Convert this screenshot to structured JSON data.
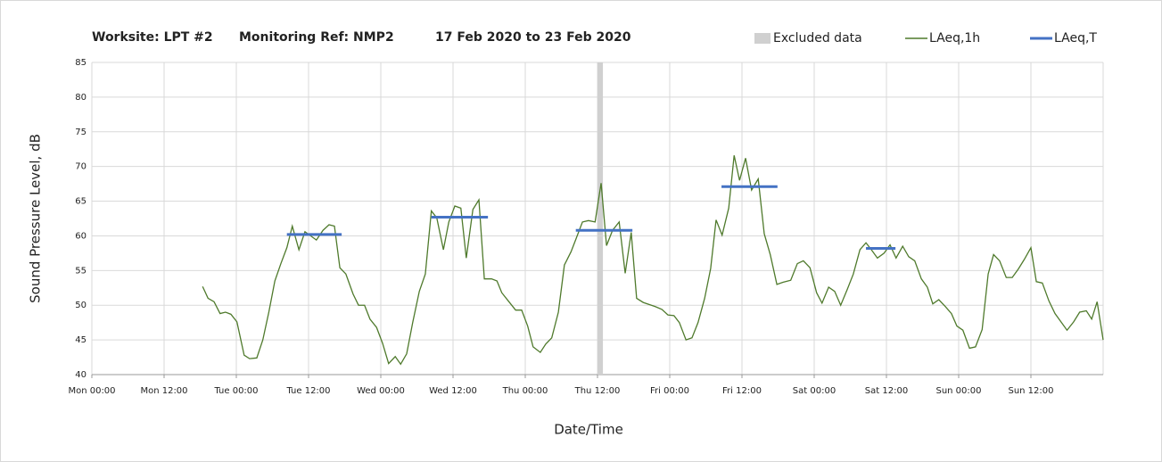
{
  "chart_data": {
    "type": "line",
    "title": [
      "Worksite: LPT #2",
      "Monitoring Ref: NMP2",
      "17 Feb 2020 to 23 Feb 2020"
    ],
    "xlabel": "Date/Time",
    "ylabel": "Sound Pressure Level, dB",
    "xlim": [
      0,
      168
    ],
    "xticks": [
      {
        "value": 0,
        "label": "Mon 00:00"
      },
      {
        "value": 12,
        "label": "Mon 12:00"
      },
      {
        "value": 24,
        "label": "Tue 00:00"
      },
      {
        "value": 36,
        "label": "Tue 12:00"
      },
      {
        "value": 48,
        "label": "Wed 00:00"
      },
      {
        "value": 60,
        "label": "Wed 12:00"
      },
      {
        "value": 72,
        "label": "Thu 00:00"
      },
      {
        "value": 84,
        "label": "Thu 12:00"
      },
      {
        "value": 96,
        "label": "Fri 00:00"
      },
      {
        "value": 108,
        "label": "Fri 12:00"
      },
      {
        "value": 120,
        "label": "Sat 00:00"
      },
      {
        "value": 132,
        "label": "Sat 12:00"
      },
      {
        "value": 144,
        "label": "Sun 00:00"
      },
      {
        "value": 156,
        "label": "Sun 12:00"
      }
    ],
    "ylim": [
      40,
      85
    ],
    "yticks": [
      40,
      45,
      50,
      55,
      60,
      65,
      70,
      75,
      80,
      85
    ],
    "grid": true,
    "excluded": {
      "name": "Excluded data",
      "color": "#d0d0d0",
      "x": [
        84,
        84.9
      ]
    },
    "series": [
      {
        "name": "LAeq,1h",
        "color": "#4f7a2c",
        "x": [
          18.4,
          19.3,
          20.3,
          21.3,
          22.2,
          23.1,
          24.1,
          25.3,
          26.2,
          27.4,
          28.4,
          29.4,
          30.4,
          31.4,
          32.4,
          33.3,
          34.4,
          35.4,
          37.3,
          38.4,
          39.4,
          40.3,
          41.2,
          42.2,
          43.4,
          44.3,
          45.3,
          46.2,
          47.3,
          48.3,
          49.3,
          50.4,
          51.3,
          52.3,
          53.3,
          54.4,
          55.4,
          56.4,
          57.3,
          58.4,
          59.3,
          60.3,
          61.3,
          62.2,
          63.3,
          64.3,
          65.2,
          66.4,
          67.3,
          68.1,
          69.2,
          70.4,
          71.4,
          72.4,
          73.3,
          74.5,
          75.4,
          76.4,
          77.5,
          78.5,
          79.6,
          80.4,
          81.5,
          82.5,
          83.6,
          84.6,
          85.5,
          86.5,
          87.6,
          88.6,
          89.6,
          90.5,
          91.6,
          93.6,
          94.7,
          95.7,
          96.7,
          97.6,
          98.7,
          99.7,
          100.7,
          101.8,
          102.8,
          103.7,
          104.7,
          105.8,
          106.7,
          107.6,
          108.6,
          109.6,
          110.7,
          111.7,
          112.7,
          113.8,
          114.8,
          116.1,
          117.2,
          118.2,
          119.3,
          120.4,
          121.3,
          122.4,
          123.4,
          124.4,
          125.5,
          126.5,
          127.6,
          128.6,
          129.5,
          130.5,
          131.6,
          132.6,
          133.6,
          134.7,
          135.7,
          136.7,
          137.8,
          138.8,
          139.7,
          140.7,
          141.8,
          142.8,
          143.7,
          144.7,
          145.8,
          146.8,
          147.9,
          148.9,
          149.8,
          150.8,
          151.9,
          152.9,
          153.9,
          154.9,
          156,
          156.9,
          157.9,
          159,
          160,
          161,
          162,
          163.1,
          164.1,
          165.2,
          166.1,
          167,
          168
        ],
        "values": [
          52.7,
          51,
          50.5,
          48.8,
          49,
          48.7,
          47.6,
          42.8,
          42.3,
          42.4,
          45,
          49,
          53.5,
          56,
          58.3,
          61.4,
          58,
          60.6,
          59.4,
          60.8,
          61.6,
          61.4,
          55.4,
          54.5,
          51.6,
          50,
          50,
          48,
          46.8,
          44.5,
          41.6,
          42.6,
          41.5,
          43,
          47.5,
          52,
          54.5,
          63.6,
          62.6,
          58,
          62,
          64.3,
          64,
          56.8,
          63.8,
          65.2,
          53.8,
          53.8,
          53.5,
          51.8,
          50.6,
          49.3,
          49.3,
          47,
          44,
          43.2,
          44.4,
          45.3,
          49,
          55.8,
          57.7,
          59.5,
          62,
          62.2,
          62,
          67.6,
          58.6,
          60.8,
          62,
          54.6,
          60.5,
          51,
          50.4,
          49.8,
          49.4,
          48.6,
          48.5,
          47.5,
          45,
          45.3,
          47.5,
          51,
          55.3,
          62.3,
          60.1,
          64,
          71.6,
          68,
          71.2,
          66.6,
          68.2,
          60.3,
          57.3,
          53,
          53.3,
          53.6,
          56,
          56.4,
          55.4,
          51.8,
          50.3,
          52.6,
          52,
          50,
          52.3,
          54.5,
          58,
          59,
          58,
          56.8,
          57.5,
          58.7,
          56.8,
          58.5,
          57,
          56.4,
          53.8,
          52.6,
          50.2,
          50.8,
          49.8,
          48.8,
          47,
          46.4,
          43.8,
          44,
          46.5,
          54.5,
          57.3,
          56.4,
          54,
          54,
          55.2,
          56.6,
          58.3,
          53.4,
          53.2,
          50.6,
          48.8,
          47.6,
          46.4,
          47.6,
          49,
          49.2,
          48,
          50.5,
          45
        ]
      },
      {
        "name": "LAeq,T",
        "color": "#4472c4",
        "segments": [
          {
            "x": [
              32.4,
              41.5
            ],
            "value": 60.2
          },
          {
            "x": [
              56.4,
              65.8
            ],
            "value": 62.7
          },
          {
            "x": [
              80.4,
              89.8
            ],
            "value": 60.8
          },
          {
            "x": [
              104.6,
              113.9
            ],
            "value": 67.1
          },
          {
            "x": [
              128.6,
              133.5
            ],
            "value": 58.2
          }
        ]
      }
    ]
  }
}
